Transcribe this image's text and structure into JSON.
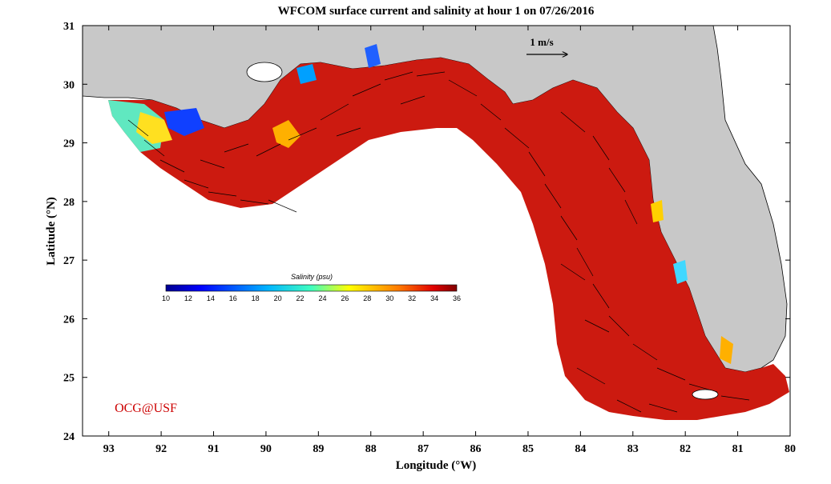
{
  "title": "WFCOM surface current and salinity at hour 1 on 07/26/2016",
  "scale_arrow_label": "1 m/s",
  "credit": "OCG@USF",
  "axes": {
    "xlabel": "Longitude (°W)",
    "ylabel": "Latitude (°N)",
    "x_ticks": [
      "93",
      "92",
      "91",
      "90",
      "89",
      "88",
      "87",
      "86",
      "85",
      "84",
      "83",
      "82",
      "81",
      "80"
    ],
    "y_ticks": [
      "31",
      "30",
      "29",
      "28",
      "27",
      "26",
      "25",
      "24"
    ],
    "xlim_west": [
      93.5,
      80
    ],
    "ylim_north": [
      24,
      31
    ]
  },
  "colorbar": {
    "title": "Salinity (psu)",
    "ticks": [
      "10",
      "12",
      "14",
      "16",
      "18",
      "20",
      "22",
      "24",
      "26",
      "28",
      "30",
      "32",
      "34",
      "36"
    ],
    "range": [
      10,
      36
    ],
    "colormap": "jet"
  },
  "colors": {
    "land": "#c8c8c8",
    "ocean_high_salinity": "#cc1a10",
    "credit_text": "#cc0000",
    "background": "#ffffff"
  }
}
